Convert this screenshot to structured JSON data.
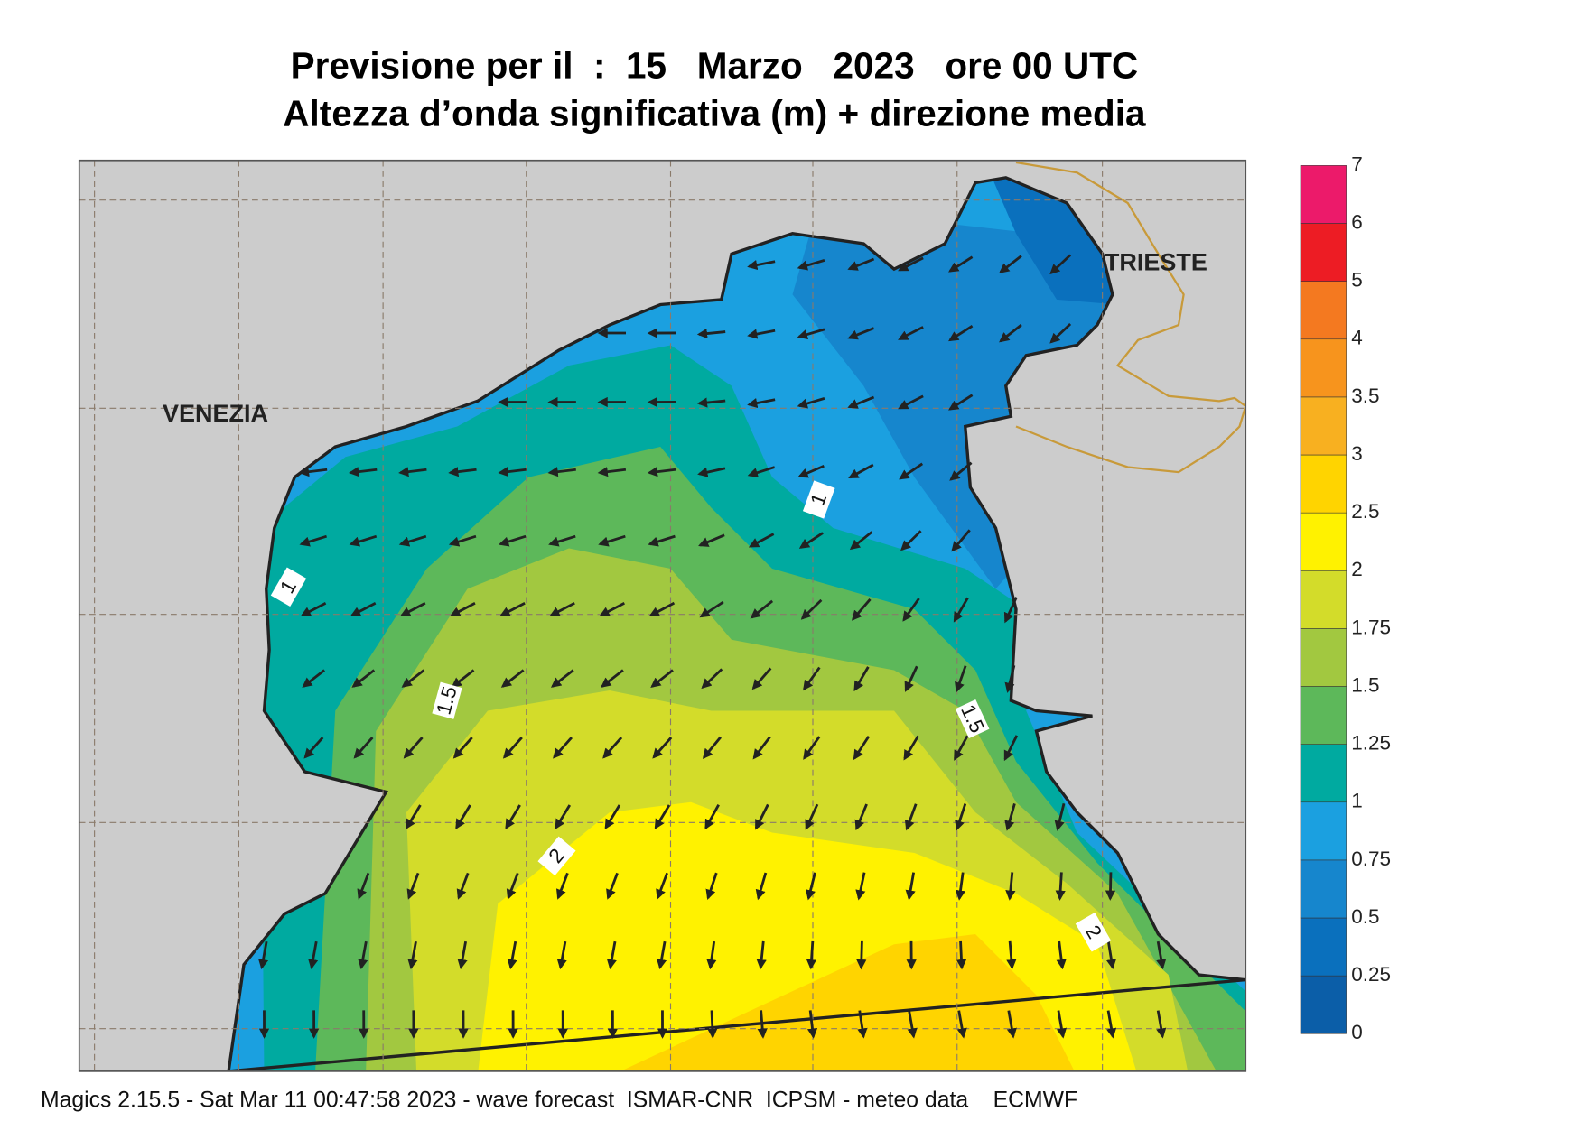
{
  "header": {
    "title": "Previsione per il  :  15   Marzo   2023   ore 00 UTC",
    "subtitle": "Altezza d’onda significativa (m) + direzione media"
  },
  "map": {
    "cities": [
      "VENEZIA",
      "TRIESTE"
    ],
    "contour_labels": [
      1,
      1,
      1.5,
      1.5,
      2,
      2
    ]
  },
  "colorbar": {
    "ticks": [
      0,
      0.25,
      0.5,
      0.75,
      1,
      1.25,
      1.5,
      1.75,
      2,
      2.5,
      3,
      3.5,
      4,
      5,
      6,
      7
    ],
    "colors": [
      "#0b5ea8",
      "#0a70bd",
      "#1686cd",
      "#1ba0e0",
      "#00aaa0",
      "#5db85a",
      "#a2c840",
      "#d3dc2a",
      "#fff200",
      "#ffd400",
      "#f8b020",
      "#f7941d",
      "#f47920",
      "#ed1c24",
      "#ec1a6a"
    ]
  },
  "footer": "Magics 2.15.5 - Sat Mar 11 00:47:58 2023 - wave forecast  ISMAR-CNR  ICPSM - meteo data    ECMWF"
}
